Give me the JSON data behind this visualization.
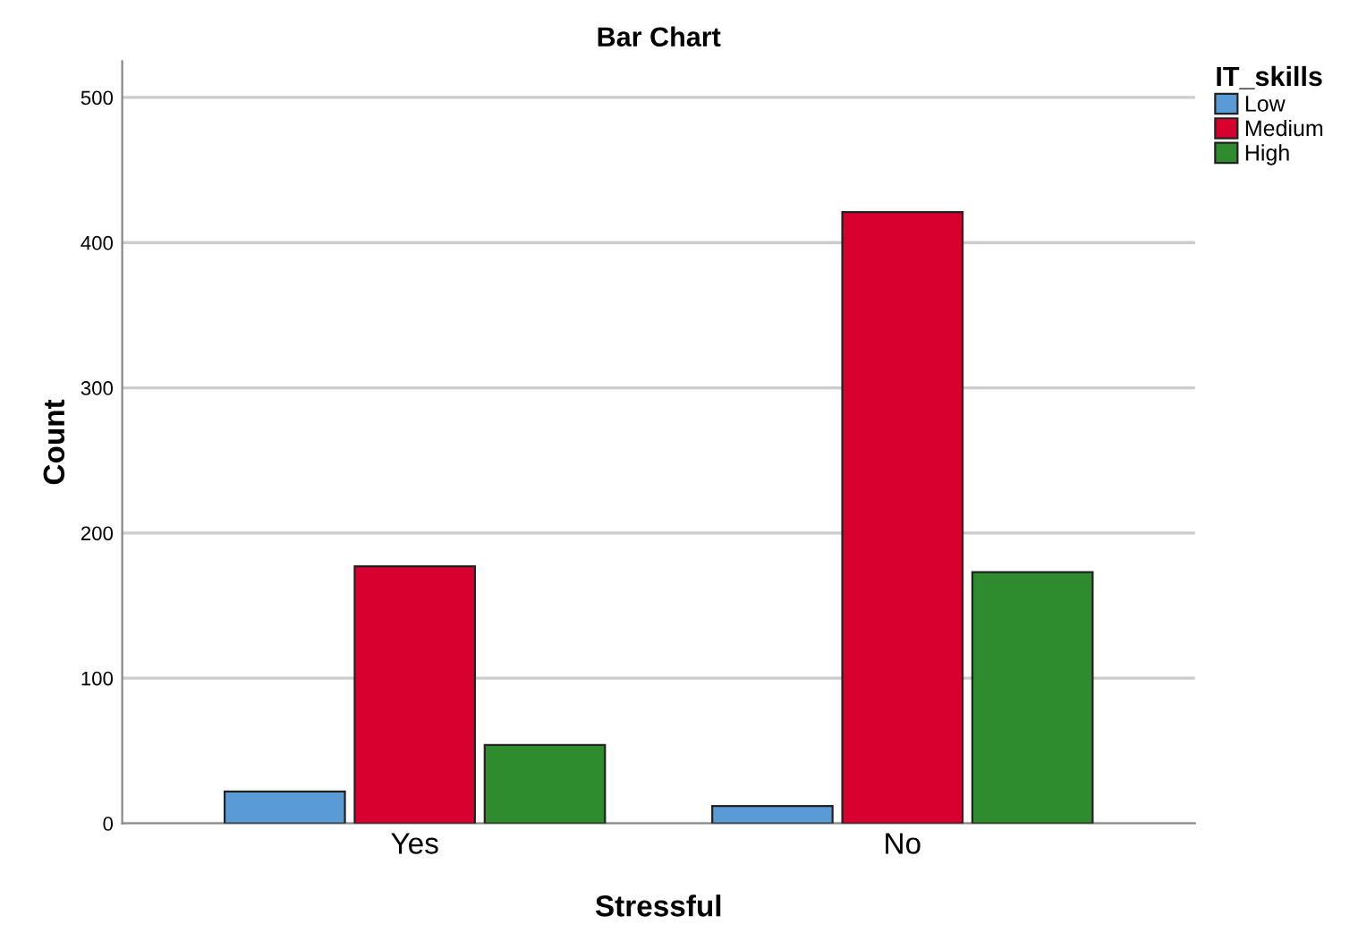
{
  "chart_data": {
    "type": "bar",
    "title": "Bar Chart",
    "xlabel": "Stressful",
    "ylabel": "Count",
    "legend_title": "IT_skills",
    "categories": [
      "Yes",
      "No"
    ],
    "series": [
      {
        "name": "Low",
        "color": "#5b9bd5",
        "values": [
          22,
          12
        ]
      },
      {
        "name": "Medium",
        "color": "#d8002f",
        "values": [
          177,
          421
        ]
      },
      {
        "name": "High",
        "color": "#2e8b2e",
        "values": [
          54,
          173
        ]
      }
    ],
    "ylim": [
      0,
      525
    ],
    "yticks": [
      0,
      100,
      200,
      300,
      400,
      500
    ],
    "grid": "y",
    "legend": "top right"
  }
}
